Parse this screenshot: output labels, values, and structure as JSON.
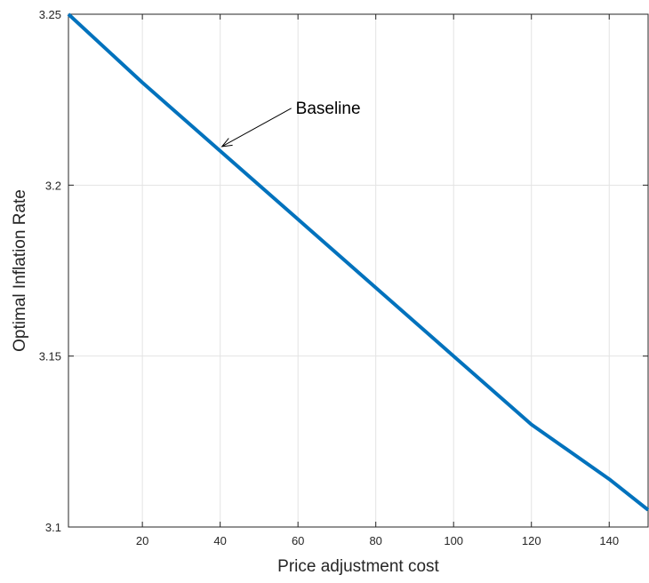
{
  "chart_data": {
    "type": "line",
    "title": "",
    "xlabel": "Price adjustment cost",
    "ylabel": "Optimal Inflation Rate",
    "xlim": [
      1,
      150
    ],
    "ylim": [
      3.1,
      3.25
    ],
    "xticks": [
      20,
      40,
      60,
      80,
      100,
      120,
      140
    ],
    "xtick_labels": [
      "20",
      "40",
      "60",
      "80",
      "100",
      "120",
      "140"
    ],
    "yticks": [
      3.1,
      3.15,
      3.2,
      3.25
    ],
    "ytick_labels": [
      "3.1",
      "3.15",
      "3.2",
      "3.25"
    ],
    "grid": true,
    "series": [
      {
        "color": "#0072BD",
        "x": [
          1,
          20,
          40,
          60,
          80,
          100,
          120,
          140,
          150
        ],
        "y": [
          3.25,
          3.23,
          3.21,
          3.19,
          3.17,
          3.15,
          3.13,
          3.114,
          3.105
        ]
      }
    ],
    "annotations": [
      {
        "text": "Baseline",
        "x": 40,
        "y": 3.21
      }
    ]
  }
}
